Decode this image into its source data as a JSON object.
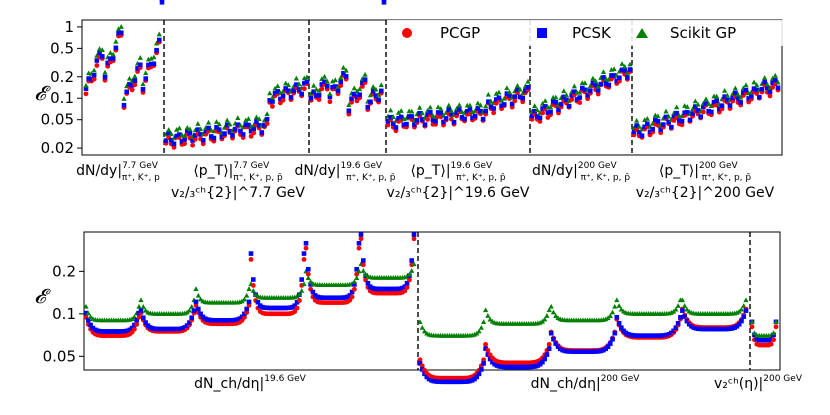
{
  "chart_data": [
    {
      "type": "scatter",
      "title": "",
      "ylabel": "𝓔",
      "yscale": "log",
      "ylim": [
        0.016,
        1.25
      ],
      "yticks": [
        {
          "v": 1,
          "label": "1"
        },
        {
          "v": 0.5,
          "label": "0.5"
        },
        {
          "v": 0.2,
          "label": "0.2"
        },
        {
          "v": 0.1,
          "label": "0.1"
        },
        {
          "v": 0.05,
          "label": "0.05"
        },
        {
          "v": 0.02,
          "label": "0.02"
        }
      ],
      "n_points": 330,
      "dividers": [
        56,
        152,
        206,
        338,
        396
      ],
      "categories": [
        {
          "main": "dN/dy",
          "sup": "7.7 GeV",
          "sub": "π⁺, K⁺, p",
          "line2": ""
        },
        {
          "main": "⟨p_T⟩",
          "sup": "7.7 GeV",
          "sub": "π⁺, K⁺, p, p̄",
          "line2": "v₂/₃ᶜʰ{2}|^7.7 GeV"
        },
        {
          "main": "dN/dy",
          "sup": "19.6 GeV",
          "sub": "π⁺, K⁺, p, p̄",
          "line2": ""
        },
        {
          "main": "⟨p_T⟩",
          "sup": "19.6 GeV",
          "sub": "π⁺, K⁺, p, p̄",
          "line2": "v₂/₃ᶜʰ{2}|^19.6 GeV"
        },
        {
          "main": "dN/dy",
          "sup": "200 GeV",
          "sub": "π⁺, K⁺, p, p̄",
          "line2": ""
        },
        {
          "main": "⟨p_T⟩",
          "sup": "200 GeV",
          "sub": "π⁺, K⁺, p, p̄",
          "line2": "v₂/₃ᶜʰ{2}|^200 GeV"
        }
      ],
      "category_texts": [
        "dN/dy|^7.7 GeV_π⁺,K⁺,p",
        "⟨pT⟩|^7.7 GeV_π⁺,K⁺,p,p̄ \\ v^ch_2/3{2}|^7.7 GeV",
        "dN/dy|^19.6 GeV_π⁺,K⁺,p,p̄",
        "⟨pT⟩|^19.6 GeV_π⁺,K⁺,p,p̄ \\ v^ch_2/3{2}|^19.6 GeV",
        "dN/dy|^200 GeV_π⁺,K⁺,p,p̄",
        "⟨pT⟩|^200 GeV_π⁺,K⁺,p,p̄ \\ v^ch_2/3{2}|^200 GeV"
      ],
      "segments": [
        {
          "from": 0,
          "to": 56,
          "pcgp": [
            0.12,
            0.35,
            0.1,
            0.55,
            0.08,
            0.35,
            0.06,
            0.4
          ],
          "pcsk": [
            0.15,
            0.4,
            0.12,
            0.7,
            0.09,
            0.4,
            0.07,
            0.45
          ],
          "scikit": [
            0.18,
            0.6,
            0.14,
            0.8,
            0.11,
            0.55,
            0.09,
            0.6
          ]
        },
        {
          "from": 56,
          "to": 152,
          "pcgp": [
            0.022,
            0.04
          ],
          "pcsk": [
            0.024,
            0.045
          ],
          "scikit": [
            0.03,
            0.055
          ]
        },
        {
          "from": 152,
          "to": 206,
          "pcgp": [
            0.09,
            0.18
          ],
          "pcsk": [
            0.1,
            0.2
          ],
          "scikit": [
            0.12,
            0.22
          ]
        },
        {
          "from": 206,
          "to": 338,
          "pcgp": [
            0.04,
            0.1
          ],
          "pcsk": [
            0.038,
            0.1
          ],
          "scikit": [
            0.045,
            0.12
          ]
        },
        {
          "from": 338,
          "to": 396,
          "pcgp": [
            0.05,
            0.22
          ],
          "pcsk": [
            0.055,
            0.24
          ],
          "scikit": [
            0.065,
            0.27
          ]
        },
        {
          "from": 396,
          "to": 520,
          "pcgp": [
            0.03,
            0.15
          ],
          "pcsk": [
            0.032,
            0.16
          ],
          "scikit": [
            0.035,
            0.18
          ]
        }
      ],
      "series": [
        {
          "name": "PCGP",
          "marker": "circle",
          "color": "#ff0000"
        },
        {
          "name": "PCSK",
          "marker": "square",
          "color": "#0000ff"
        },
        {
          "name": "Scikit GP",
          "marker": "triangle",
          "color": "#008000"
        }
      ],
      "legend": "top-right"
    },
    {
      "type": "scatter",
      "title": "",
      "ylabel": "𝓔",
      "yscale": "log",
      "ylim": [
        0.04,
        0.38
      ],
      "yticks": [
        {
          "v": 0.2,
          "label": "0.2"
        },
        {
          "v": 0.1,
          "label": "0.1"
        },
        {
          "v": 0.05,
          "label": "0.05"
        }
      ],
      "dividers": [
        330,
        660
      ],
      "categories": [
        {
          "main": "dN_ch/dη",
          "sup": "19.6 GeV"
        },
        {
          "main": "dN_ch/dη",
          "sup": "200 GeV"
        },
        {
          "main": "v₂ᶜʰ(η)",
          "sup": "200 GeV"
        }
      ],
      "category_texts": [
        "dNch/dη|^19.6 GeV",
        "dNch/dη|^200 GeV",
        "v2^ch(η)|^200 GeV"
      ],
      "series": [
        {
          "name": "PCGP",
          "color": "#ff0000"
        },
        {
          "name": "PCSK",
          "color": "#0000ff"
        },
        {
          "name": "Scikit GP",
          "color": "#008000"
        }
      ]
    }
  ]
}
